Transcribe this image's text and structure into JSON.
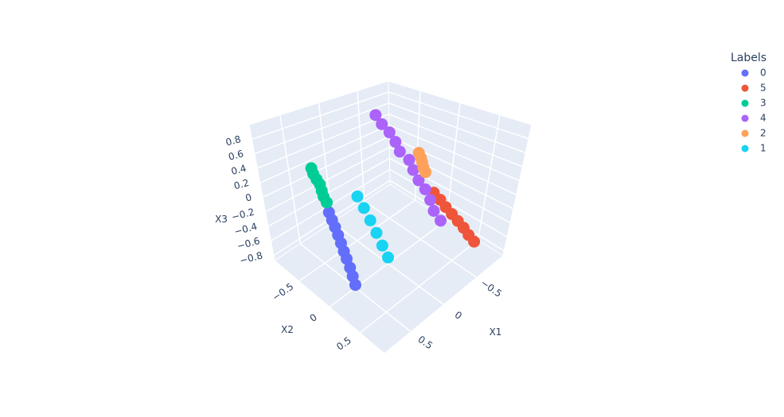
{
  "chart_data": {
    "type": "scatter3d",
    "xlabel": "X1",
    "ylabel": "X2",
    "zlabel": "X3",
    "legend_title": "Labels",
    "legend": "top-right",
    "xlim": [
      -0.9,
      0.9
    ],
    "ylim": [
      -0.9,
      0.9
    ],
    "zlim": [
      -0.87,
      1.0
    ],
    "xticks": [
      {
        "value": -0.5,
        "label": "−0.5"
      },
      0,
      0.5
    ],
    "yticks": [
      {
        "value": -0.5,
        "label": "−0.5"
      },
      0,
      0.5
    ],
    "zticks": [
      {
        "value": -0.8,
        "label": "−0.8"
      },
      {
        "value": -0.6,
        "label": "−0.6"
      },
      {
        "value": -0.4,
        "label": "−0.4"
      },
      {
        "value": -0.2,
        "label": "−0.2"
      },
      0,
      0.2,
      0.4,
      0.6,
      0.8
    ],
    "grid": true,
    "series": [
      {
        "name": "0",
        "color": "#636efa",
        "x": [
          0.54,
          0.55,
          0.56,
          0.57,
          0.58,
          0.59,
          0.6,
          0.61,
          0.62,
          0.63
        ],
        "y": [
          -0.32,
          -0.27,
          -0.22,
          -0.17,
          -0.12,
          -0.07,
          -0.02,
          0.04,
          0.09,
          0.14
        ],
        "z": [
          -0.07,
          -0.14,
          -0.2,
          -0.27,
          -0.34,
          -0.41,
          -0.47,
          -0.54,
          -0.61,
          -0.68
        ]
      },
      {
        "name": "5",
        "color": "#ef553b",
        "x": [
          -0.36,
          -0.41,
          -0.45,
          -0.5,
          -0.54,
          -0.59,
          -0.63,
          -0.68
        ],
        "y": [
          0.27,
          0.32,
          0.37,
          0.42,
          0.48,
          0.53,
          0.58,
          0.63
        ],
        "z": [
          0.03,
          -0.07,
          -0.17,
          -0.27,
          -0.36,
          -0.46,
          -0.56,
          -0.66
        ]
      },
      {
        "name": "3",
        "color": "#00cc96",
        "x": [
          0.36,
          0.37,
          0.36,
          0.35,
          0.36,
          0.37,
          0.36
        ],
        "y": [
          -0.72,
          -0.69,
          -0.66,
          -0.63,
          -0.6,
          -0.57,
          -0.54
        ],
        "z": [
          0.25,
          0.19,
          0.12,
          0.06,
          -0.01,
          -0.07,
          -0.14
        ]
      },
      {
        "name": "4",
        "color": "#ab63fa",
        "x": [
          -0.36,
          -0.35,
          -0.37,
          -0.36,
          -0.34,
          -0.38,
          -0.36,
          -0.35,
          -0.37,
          -0.36,
          -0.34,
          -0.36
        ],
        "y": [
          -0.54,
          -0.45,
          -0.37,
          -0.28,
          -0.2,
          -0.11,
          -0.03,
          0.06,
          0.14,
          0.23,
          0.31,
          0.4
        ],
        "z": [
          0.81,
          0.71,
          0.61,
          0.51,
          0.41,
          0.31,
          0.21,
          0.11,
          0.01,
          -0.09,
          -0.19,
          -0.29
        ]
      },
      {
        "name": "2",
        "color": "#ffa15a",
        "x": [
          -0.48,
          -0.47,
          -0.45,
          -0.43,
          -0.42
        ],
        "y": [
          -0.08,
          -0.04,
          0,
          0.04,
          0.08
        ],
        "z": [
          0.38,
          0.33,
          0.29,
          0.24,
          0.2
        ]
      },
      {
        "name": "1",
        "color": "#19d3f3",
        "x": [
          0.22,
          0.19,
          0.17,
          0.14,
          0.12,
          0.09
        ],
        "y": [
          -0.23,
          -0.17,
          -0.1,
          -0.04,
          0.03,
          0.09
        ],
        "z": [
          0.03,
          -0.11,
          -0.25,
          -0.4,
          -0.54,
          -0.68
        ]
      }
    ]
  }
}
